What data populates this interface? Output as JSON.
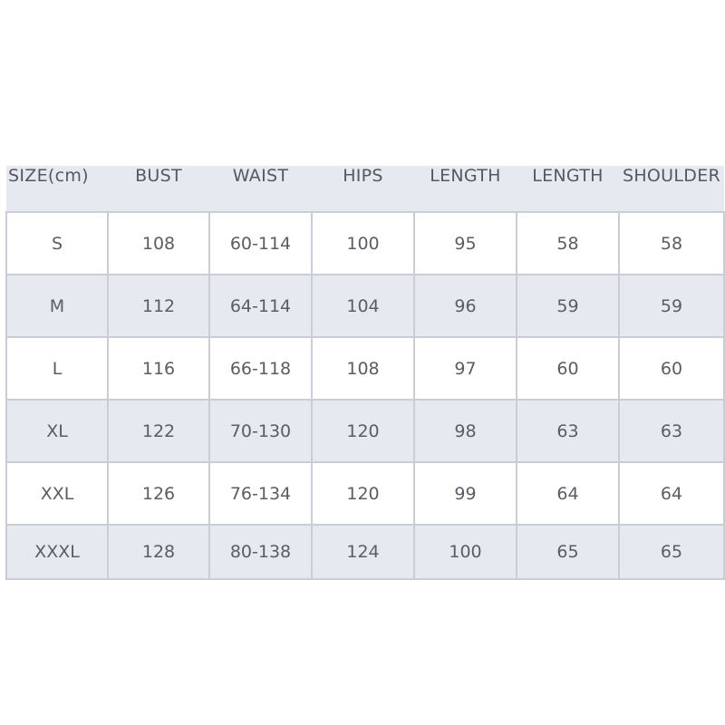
{
  "table": {
    "headers": [
      "SIZE(cm)",
      "BUST",
      "WAIST",
      "HIPS",
      "LENGTH",
      "LENGTH",
      "SHOULDER"
    ],
    "rows": [
      [
        "S",
        "108",
        "60-114",
        "100",
        "95",
        "58",
        "58"
      ],
      [
        "M",
        "112",
        "64-114",
        "104",
        "96",
        "59",
        "59"
      ],
      [
        "L",
        "116",
        "66-118",
        "108",
        "97",
        "60",
        "60"
      ],
      [
        "XL",
        "122",
        "70-130",
        "120",
        "98",
        "63",
        "63"
      ],
      [
        "XXL",
        "126",
        "76-134",
        "120",
        "99",
        "64",
        "64"
      ],
      [
        "XXXL",
        "128",
        "80-138",
        "124",
        "100",
        "65",
        "65"
      ]
    ]
  },
  "colors": {
    "header_bg": "#e6e9ef",
    "alt_row_bg": "#e6e9ef",
    "border": "#c9cdd6",
    "text": "#5a5d63"
  }
}
